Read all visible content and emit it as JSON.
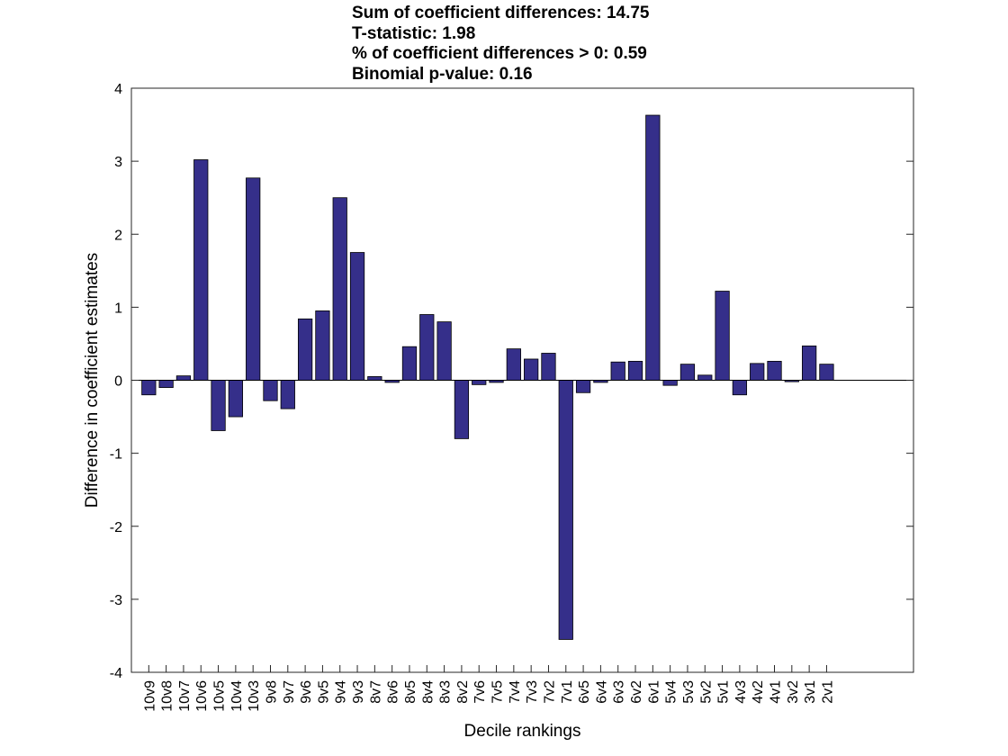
{
  "chart_data": {
    "type": "bar",
    "title_lines": [
      "Sum of coefficient differences: 14.75",
      "T-statistic: 1.98",
      "% of coefficient differences > 0: 0.59",
      "Binomial p-value: 0.16"
    ],
    "xlabel": "Decile rankings",
    "ylabel": "Difference in coefficient estimates",
    "ylim": [
      -4,
      4
    ],
    "yticks": [
      -4,
      -3,
      -2,
      -1,
      0,
      1,
      2,
      3,
      4
    ],
    "categories": [
      "10v9",
      "10v8",
      "10v7",
      "10v6",
      "10v5",
      "10v4",
      "10v3",
      "9v8",
      "9v7",
      "9v6",
      "9v5",
      "9v4",
      "9v3",
      "8v7",
      "8v6",
      "8v5",
      "8v4",
      "8v3",
      "8v2",
      "7v6",
      "7v5",
      "7v4",
      "7v3",
      "7v2",
      "7v1",
      "6v5",
      "6v4",
      "6v3",
      "6v2",
      "6v1",
      "5v4",
      "5v3",
      "5v2",
      "5v1",
      "4v3",
      "4v2",
      "4v1",
      "3v2",
      "3v1",
      "2v1"
    ],
    "values": [
      -0.2,
      -0.1,
      0.06,
      3.02,
      -0.69,
      -0.5,
      2.77,
      -0.28,
      -0.39,
      0.84,
      0.95,
      2.5,
      1.75,
      0.05,
      -0.03,
      0.46,
      0.9,
      0.8,
      -0.8,
      -0.06,
      -0.03,
      0.43,
      0.29,
      0.37,
      -3.55,
      -0.17,
      -0.03,
      0.25,
      0.26,
      3.63,
      -0.07,
      0.22,
      0.07,
      1.22,
      -0.2,
      0.23,
      0.26,
      -0.02,
      0.47,
      0.22
    ],
    "slot_count": 45,
    "bar_color": "#352f8a",
    "grid": false,
    "legend": "none"
  }
}
